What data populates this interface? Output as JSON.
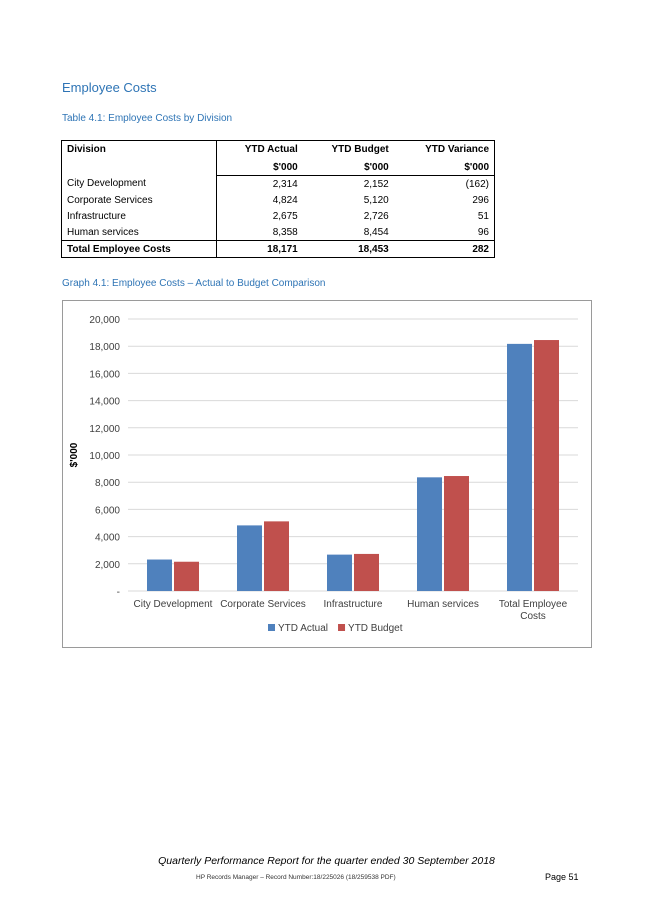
{
  "section_title": "Employee Costs",
  "table_caption": "Table 4.1: Employee Costs by Division",
  "table": {
    "headers": [
      {
        "label": "Division",
        "unit": ""
      },
      {
        "label": "YTD Actual",
        "unit": "$'000"
      },
      {
        "label": "YTD Budget",
        "unit": "$'000"
      },
      {
        "label": "YTD Variance",
        "unit": "$'000"
      }
    ],
    "rows": [
      {
        "division": "City Development",
        "actual": "2,314",
        "budget": "2,152",
        "variance": "(162)"
      },
      {
        "division": "Corporate Services",
        "actual": "4,824",
        "budget": "5,120",
        "variance": "296"
      },
      {
        "division": "Infrastructure",
        "actual": "2,675",
        "budget": "2,726",
        "variance": "51"
      },
      {
        "division": "Human services",
        "actual": "8,358",
        "budget": "8,454",
        "variance": "96"
      }
    ],
    "total": {
      "division": "Total Employee Costs",
      "actual": "18,171",
      "budget": "18,453",
      "variance": "282"
    }
  },
  "graph_caption": "Graph 4.1: Employee Costs – Actual to Budget Comparison",
  "chart_data": {
    "type": "bar",
    "title": "",
    "xlabel": "",
    "ylabel": "$'000",
    "ylim": [
      0,
      20000
    ],
    "ytick_values": [
      0,
      2000,
      4000,
      6000,
      8000,
      10000,
      12000,
      14000,
      16000,
      18000,
      20000
    ],
    "ytick_labels": [
      "-",
      "2,000",
      "4,000",
      "6,000",
      "8,000",
      "10,000",
      "12,000",
      "14,000",
      "16,000",
      "18,000",
      "20,000"
    ],
    "categories": [
      "City Development",
      "Corporate Services",
      "Infrastructure",
      "Human services",
      "Total Employee Costs"
    ],
    "category_lines": [
      [
        "City Development"
      ],
      [
        "Corporate Services"
      ],
      [
        "Infrastructure"
      ],
      [
        "Human services"
      ],
      [
        "Total Employee",
        "Costs"
      ]
    ],
    "series": [
      {
        "name": "YTD Actual",
        "color": "#4F81BD",
        "values": [
          2314,
          4824,
          2675,
          8358,
          18171
        ]
      },
      {
        "name": "YTD Budget",
        "color": "#C0504D",
        "values": [
          2152,
          5120,
          2726,
          8454,
          18453
        ]
      }
    ],
    "grid": true,
    "legend_position": "bottom"
  },
  "footer": {
    "report_title": "Quarterly Performance Report for the quarter ended 30 September 2018",
    "record": "HP Records Manager – Record Number:18/225026 (18/259538 PDF)",
    "page": "Page 51"
  }
}
